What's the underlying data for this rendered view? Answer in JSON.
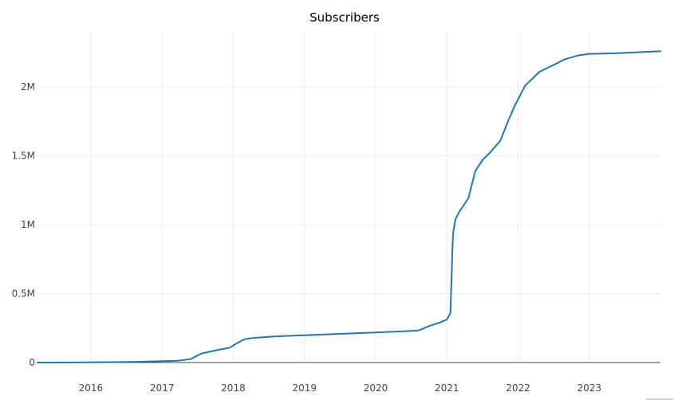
{
  "chart_data": {
    "type": "line",
    "title": "Subscribers",
    "xlabel": "",
    "ylabel": "",
    "xlim": [
      2015.25,
      2024.0
    ],
    "ylim": [
      0,
      2400000
    ],
    "grid": true,
    "x_ticks": [
      {
        "value": 2016,
        "label": "2016"
      },
      {
        "value": 2017,
        "label": "2017"
      },
      {
        "value": 2018,
        "label": "2018"
      },
      {
        "value": 2019,
        "label": "2019"
      },
      {
        "value": 2020,
        "label": "2020"
      },
      {
        "value": 2021,
        "label": "2021"
      },
      {
        "value": 2022,
        "label": "2022"
      },
      {
        "value": 2023,
        "label": "2023"
      }
    ],
    "y_ticks": [
      {
        "value": 0,
        "label": "0"
      },
      {
        "value": 500000,
        "label": "0.5M"
      },
      {
        "value": 1000000,
        "label": "1M"
      },
      {
        "value": 1500000,
        "label": "1.5M"
      },
      {
        "value": 2000000,
        "label": "2M"
      }
    ],
    "series": [
      {
        "name": "Subscribers",
        "color": "#1f77b4",
        "x": [
          2015.25,
          2015.7,
          2016.3,
          2016.7,
          2017.0,
          2017.2,
          2017.4,
          2017.55,
          2017.75,
          2017.95,
          2018.05,
          2018.15,
          2018.25,
          2018.6,
          2019.0,
          2019.5,
          2020.0,
          2020.6,
          2020.75,
          2020.9,
          2021.0,
          2021.05,
          2021.07,
          2021.08,
          2021.09,
          2021.12,
          2021.18,
          2021.3,
          2021.4,
          2021.5,
          2021.6,
          2021.75,
          2021.85,
          2021.95,
          2022.1,
          2022.3,
          2022.5,
          2022.65,
          2022.85,
          2023.0,
          2023.4,
          2024.0
        ],
        "values": [
          0,
          1000,
          3000,
          6000,
          10000,
          12000,
          25000,
          65000,
          88000,
          108000,
          140000,
          168000,
          177000,
          190000,
          198000,
          208000,
          218000,
          232000,
          265000,
          290000,
          312000,
          360000,
          680000,
          850000,
          950000,
          1040000,
          1100000,
          1190000,
          1390000,
          1470000,
          1520000,
          1610000,
          1740000,
          1860000,
          2010000,
          2110000,
          2160000,
          2200000,
          2230000,
          2240000,
          2245000,
          2260000
        ]
      }
    ]
  }
}
